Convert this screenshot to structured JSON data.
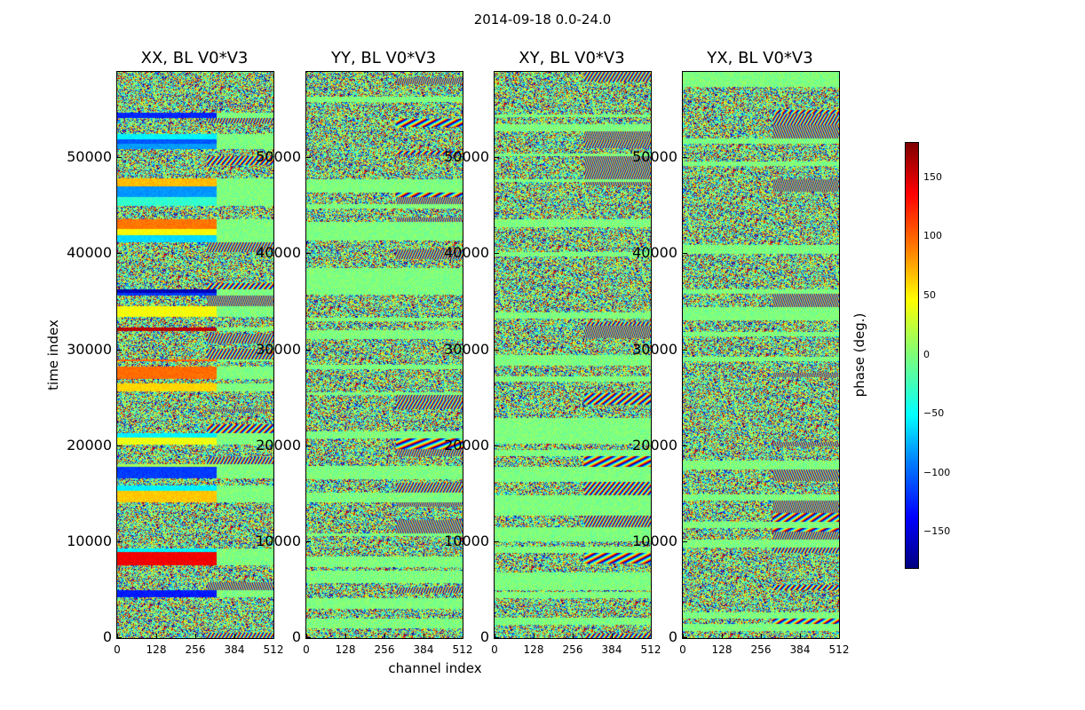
{
  "figure": {
    "title": "2014-09-18 0.0-24.0",
    "xlabel": "channel index",
    "ylabel": "time index",
    "colorbar_label": "phase (deg.)"
  },
  "chart_data": {
    "type": "heatmap",
    "panels": [
      {
        "title": "XX, BL V0*V3",
        "seed": 11
      },
      {
        "title": "YY, BL V0*V3",
        "seed": 23
      },
      {
        "title": "XY, BL V0*V3",
        "seed": 37
      },
      {
        "title": "YX, BL V0*V3",
        "seed": 51
      }
    ],
    "x_ticks": [
      0,
      128,
      256,
      384,
      512
    ],
    "x_tick_labels": [
      "0",
      "128",
      "256",
      "384",
      "512"
    ],
    "xlim": [
      0,
      512
    ],
    "y_ticks": [
      0,
      10000,
      20000,
      30000,
      40000,
      50000
    ],
    "y_tick_labels": [
      "0",
      "10000",
      "20000",
      "30000",
      "40000",
      "50000"
    ],
    "ylim": [
      0,
      59000
    ],
    "colorbar": {
      "range": [
        -180,
        180
      ],
      "ticks": [
        150,
        100,
        50,
        0,
        -50,
        -100,
        -150
      ],
      "tick_labels": [
        "150",
        "100",
        "50",
        "0",
        "−50",
        "−100",
        "−150"
      ]
    }
  }
}
